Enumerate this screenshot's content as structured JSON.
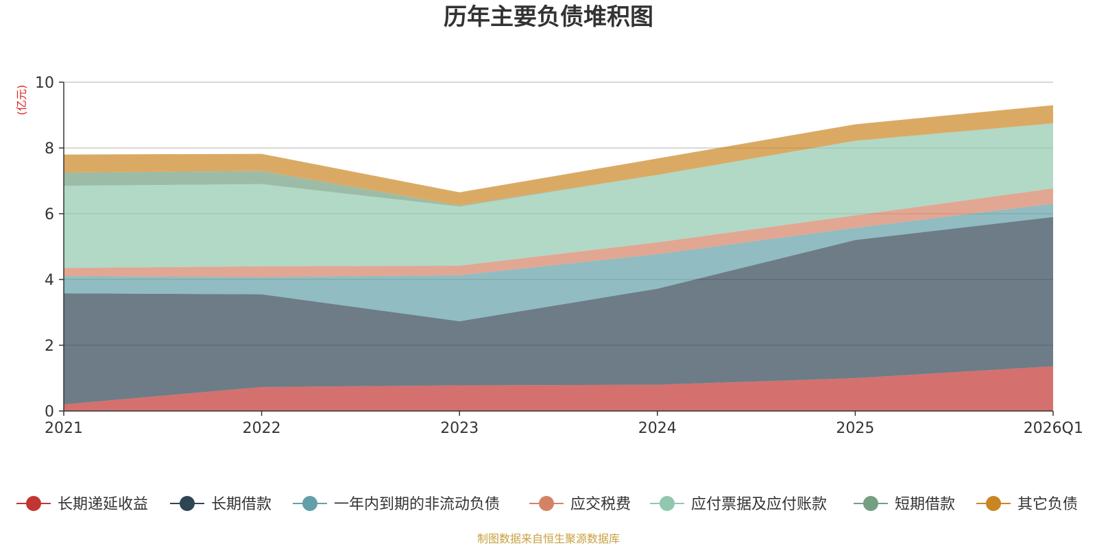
{
  "chart_data": {
    "type": "area",
    "stacked": true,
    "title": "历年主要负债堆积图",
    "unit_label": "(亿元)",
    "categories": [
      "2021",
      "2022",
      "2023",
      "2024",
      "2025",
      "2026Q1"
    ],
    "y_ticks": [
      "0",
      "2",
      "4",
      "6",
      "8",
      "10"
    ],
    "ylim": [
      0,
      10
    ],
    "grid": true,
    "legend_position": "bottom",
    "series": [
      {
        "name": "长期递延收益",
        "color": "#c23531",
        "values": [
          0.2,
          0.73,
          0.78,
          0.8,
          1.0,
          1.36
        ]
      },
      {
        "name": "长期借款",
        "color": "#2f4554",
        "values": [
          3.38,
          2.82,
          1.95,
          2.92,
          4.2,
          4.54
        ]
      },
      {
        "name": "一年内到期的非流动负债",
        "color": "#61a0a8",
        "values": [
          0.52,
          0.52,
          1.4,
          1.05,
          0.37,
          0.4
        ]
      },
      {
        "name": "应交税费",
        "color": "#d48265",
        "values": [
          0.25,
          0.33,
          0.29,
          0.36,
          0.38,
          0.47
        ]
      },
      {
        "name": "应付票据及应付账款",
        "color": "#91c7ae",
        "values": [
          2.5,
          2.5,
          1.8,
          2.05,
          2.27,
          1.98
        ]
      },
      {
        "name": "短期借款",
        "color": "#749f83",
        "values": [
          0.4,
          0.4,
          0.03,
          0.0,
          0.0,
          0.0
        ]
      },
      {
        "name": "其它负债",
        "color": "#ca8622",
        "values": [
          0.55,
          0.52,
          0.4,
          0.5,
          0.5,
          0.55
        ]
      }
    ],
    "source_note": "制图数据来自恒生聚源数据库"
  }
}
